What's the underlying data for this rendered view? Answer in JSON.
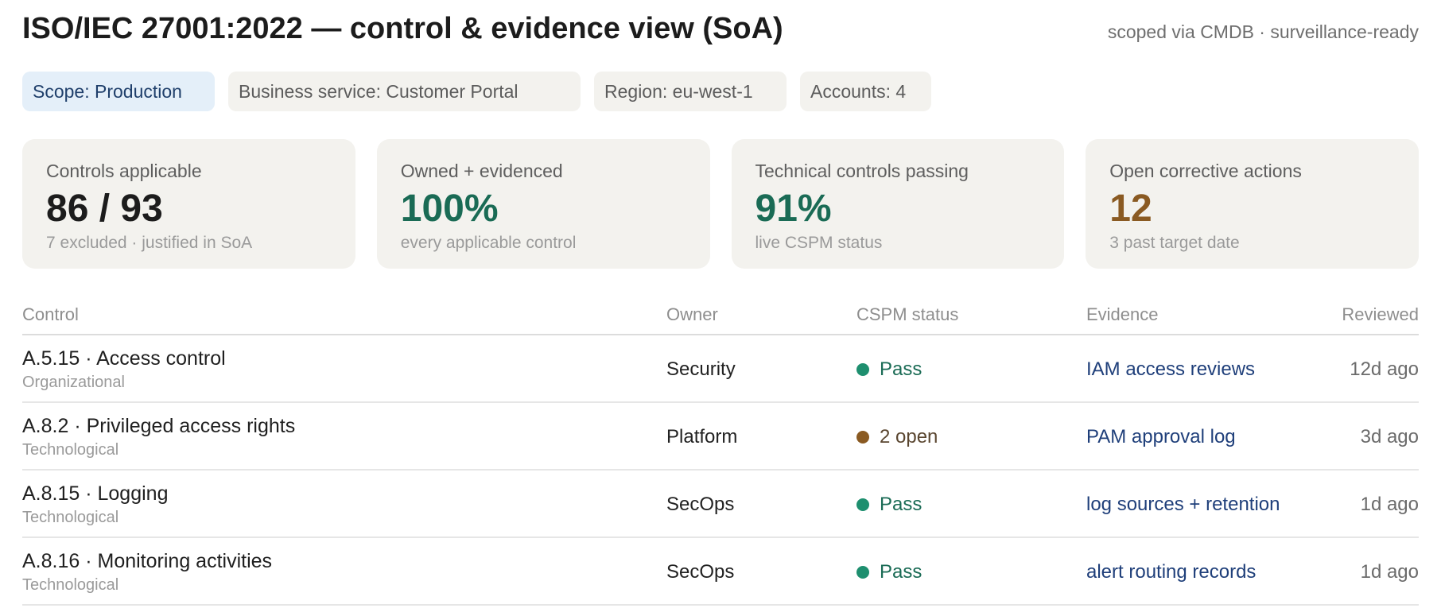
{
  "header": {
    "title": "ISO/IEC 27001:2022 — control & evidence view (SoA)",
    "subtitle": "scoped via CMDB · surveillance-ready"
  },
  "filters": [
    {
      "label": "Scope: Production",
      "active": true
    },
    {
      "label": "Business service: Customer Portal",
      "active": false
    },
    {
      "label": "Region: eu-west-1",
      "active": false
    },
    {
      "label": "Accounts: 4",
      "active": false
    }
  ],
  "cards": [
    {
      "label": "Controls applicable",
      "value": "86 / 93",
      "note": "7 excluded · justified in SoA",
      "color": "#1c1c1c"
    },
    {
      "label": "Owned + evidenced",
      "value": "100%",
      "note": "every applicable control",
      "color": "#1a6b55"
    },
    {
      "label": "Technical controls passing",
      "value": "91%",
      "note": "live CSPM status",
      "color": "#1a6b55"
    },
    {
      "label": "Open corrective actions",
      "value": "12",
      "note": "3 past target date",
      "color": "#8a5a22"
    }
  ],
  "table": {
    "columns": {
      "control": "Control",
      "owner": "Owner",
      "status": "CSPM status",
      "evidence": "Evidence",
      "reviewed": "Reviewed"
    },
    "rows": [
      {
        "control": "A.5.15 · Access control",
        "type": "Organizational",
        "owner": "Security",
        "status": "Pass",
        "status_color": "#1e8f6f",
        "status_text_color": "#1a6b55",
        "evidence": "IAM access reviews",
        "reviewed": "12d ago"
      },
      {
        "control": "A.8.2 · Privileged access rights",
        "type": "Technological",
        "owner": "Platform",
        "status": "2 open",
        "status_color": "#8a5a22",
        "status_text_color": "#5a4630",
        "evidence": "PAM approval log",
        "reviewed": "3d ago"
      },
      {
        "control": "A.8.15 · Logging",
        "type": "Technological",
        "owner": "SecOps",
        "status": "Pass",
        "status_color": "#1e8f6f",
        "status_text_color": "#1a6b55",
        "evidence": "log sources + retention",
        "reviewed": "1d ago"
      },
      {
        "control": "A.8.16 · Monitoring activities",
        "type": "Technological",
        "owner": "SecOps",
        "status": "Pass",
        "status_color": "#1e8f6f",
        "status_text_color": "#1a6b55",
        "evidence": "alert routing records",
        "reviewed": "1d ago"
      }
    ]
  }
}
